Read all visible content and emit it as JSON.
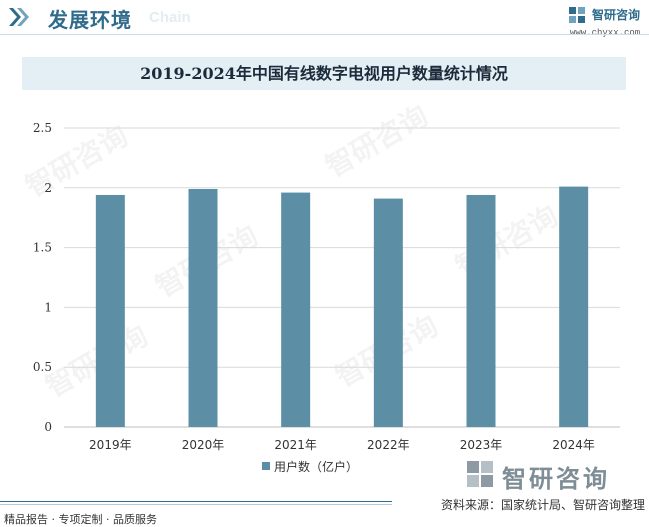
{
  "header": {
    "title": "发展环境",
    "subtitle": "Chain",
    "logo_name": "智研咨询",
    "logo_url": "www.chyxx.com"
  },
  "watermark": "智研咨询",
  "chart_data": {
    "type": "bar",
    "title": "2019-2024年中国有线数字电视用户数量统计情况",
    "categories": [
      "2019年",
      "2020年",
      "2021年",
      "2022年",
      "2023年",
      "2024年"
    ],
    "series": [
      {
        "name": "用户数（亿户）",
        "values": [
          1.94,
          1.99,
          1.96,
          1.91,
          1.94,
          2.01
        ],
        "color": "#5c8fa6"
      }
    ],
    "ylim": [
      0,
      2.5
    ],
    "yticks": [
      "0",
      "0.5",
      "1",
      "1.5",
      "2",
      "2.5"
    ],
    "ytick_values": [
      0,
      0.5,
      1,
      1.5,
      2,
      2.5
    ],
    "grid": true,
    "legend": "bottom-center"
  },
  "bottom_logo": "智研咨询",
  "footer": {
    "source": "资料来源：国家统计局、智研咨询整理",
    "services": "精品报告 · 专项定制 · 品质服务"
  },
  "colors": {
    "brand": "#2f6c8c",
    "bar": "#5c8fa6",
    "title_bg": "#e3eef5",
    "grid": "#d9d9d9"
  }
}
